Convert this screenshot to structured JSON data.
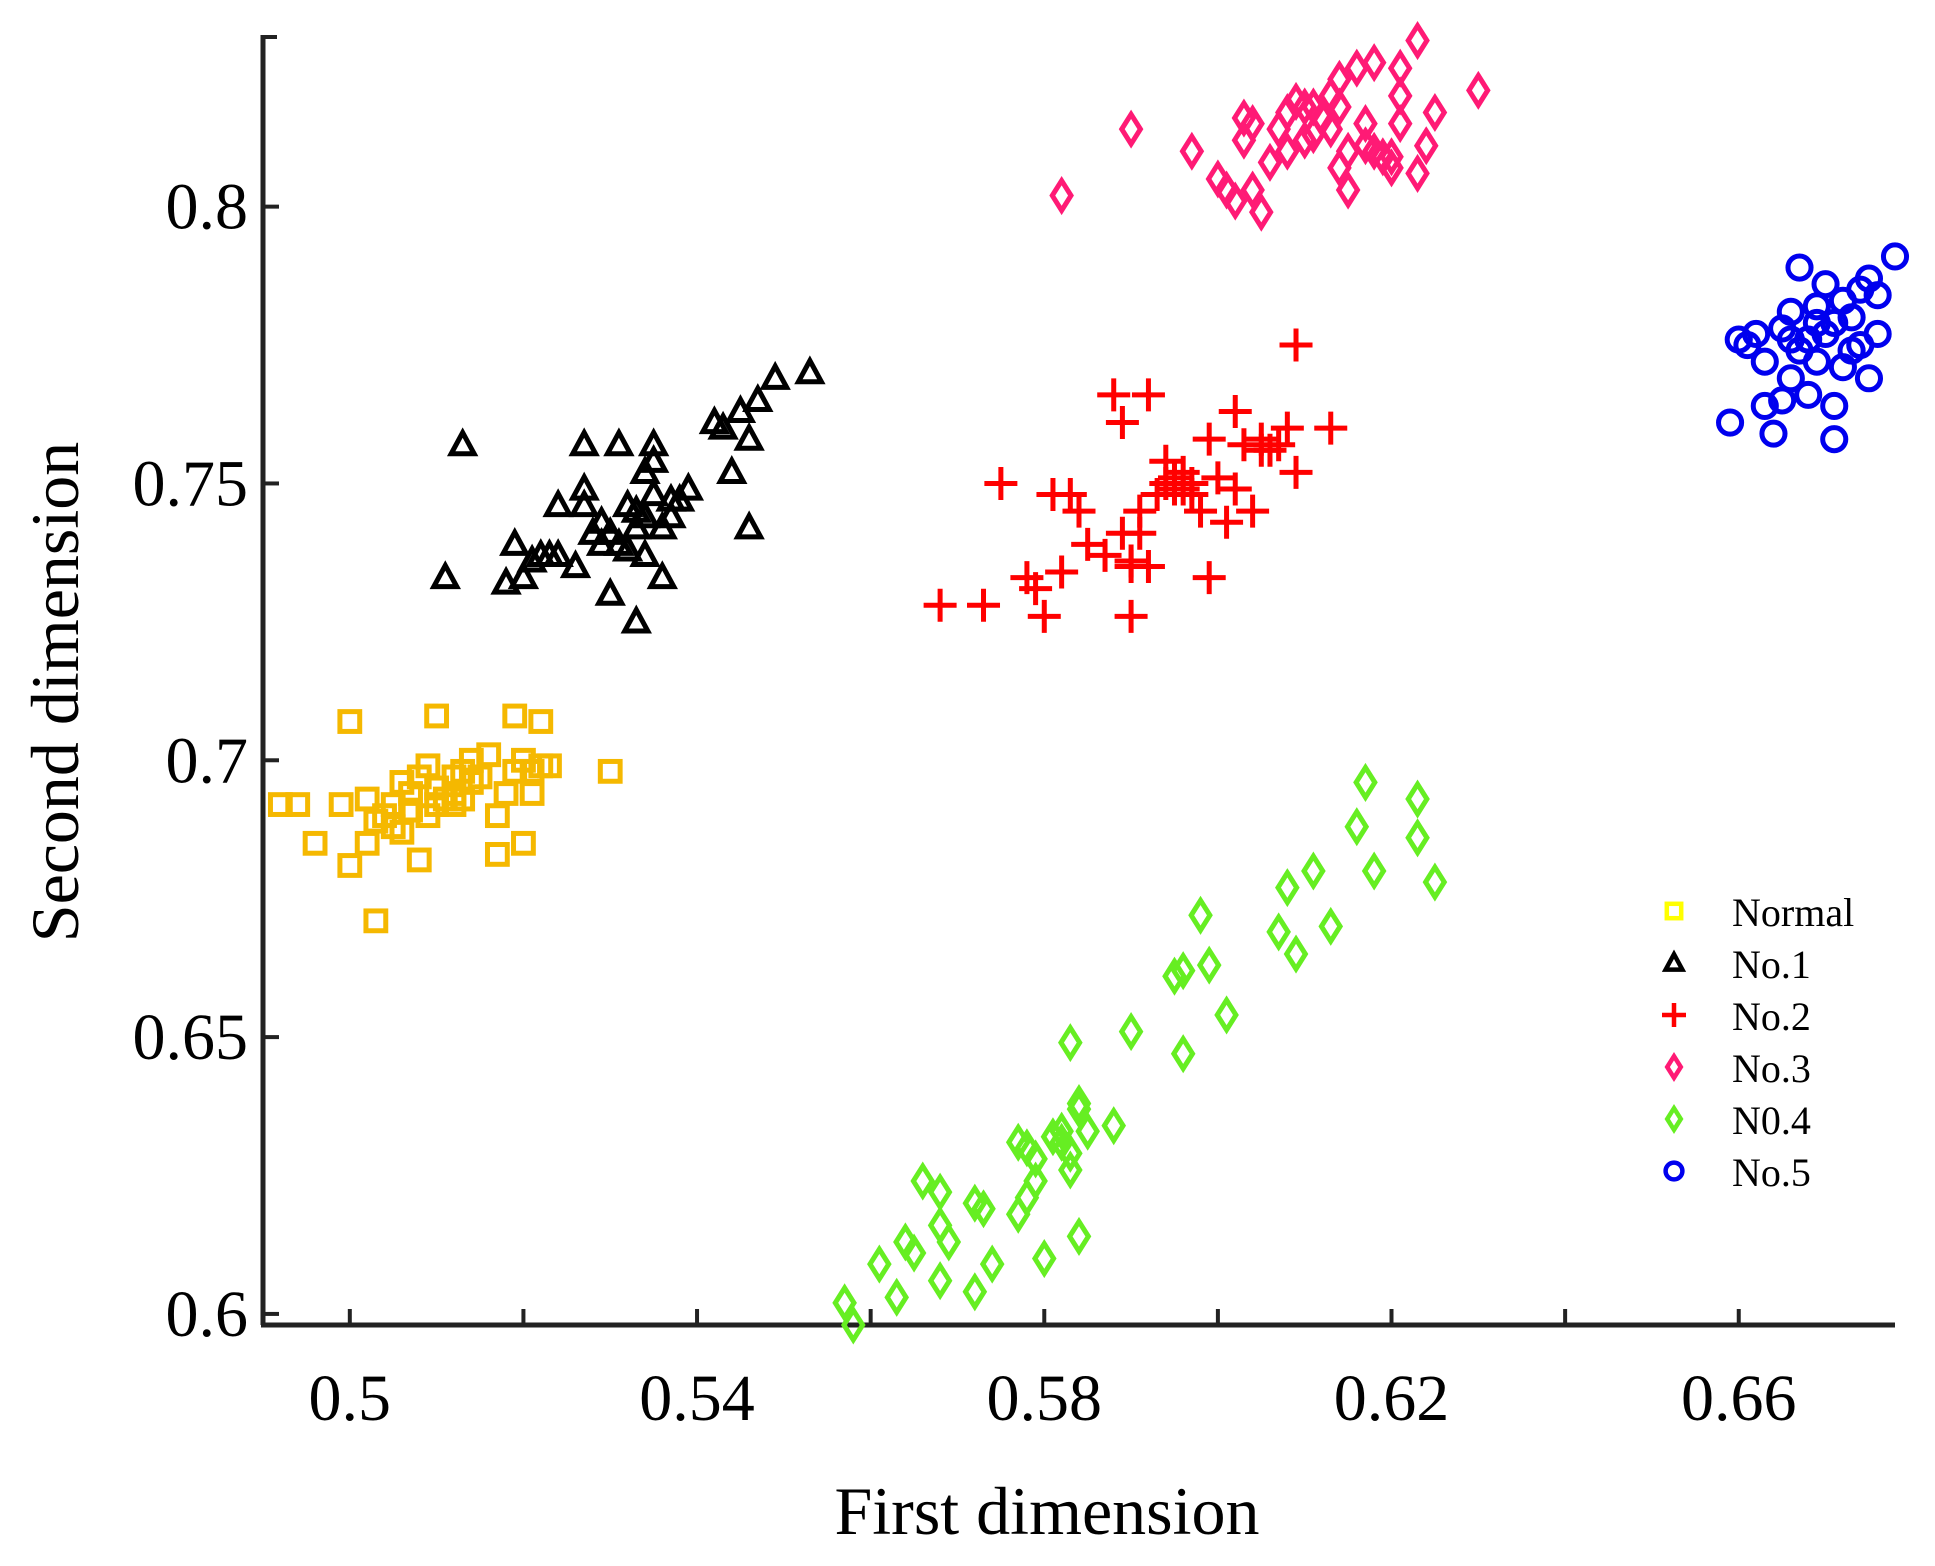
{
  "chart_data": {
    "type": "scatter",
    "title": "",
    "xlabel": "First dimension",
    "ylabel": "Second dimension",
    "xlim": [
      0.49,
      0.678
    ],
    "ylim": [
      0.598,
      0.831
    ],
    "xticks": [
      0.5,
      0.54,
      0.58,
      0.62,
      0.66
    ],
    "xtick_labels": [
      "0.5",
      "0.54",
      "0.58",
      "0.62",
      "0.66"
    ],
    "yticks": [
      0.6,
      0.65,
      0.7,
      0.75,
      0.8
    ],
    "ytick_labels": [
      "0.6",
      "0.65",
      "0.7",
      "0.75",
      "0.8"
    ],
    "grid": false,
    "legend_position": "right",
    "series": [
      {
        "name": "Normal",
        "marker": "square",
        "color": "#f5b800",
        "legend_color": "#ffff00",
        "points": [
          [
            0.492,
            0.692
          ],
          [
            0.494,
            0.692
          ],
          [
            0.496,
            0.685
          ],
          [
            0.499,
            0.692
          ],
          [
            0.5,
            0.681
          ],
          [
            0.5,
            0.707
          ],
          [
            0.502,
            0.693
          ],
          [
            0.502,
            0.685
          ],
          [
            0.503,
            0.689
          ],
          [
            0.503,
            0.671
          ],
          [
            0.504,
            0.69
          ],
          [
            0.505,
            0.688
          ],
          [
            0.505,
            0.692
          ],
          [
            0.506,
            0.687
          ],
          [
            0.506,
            0.696
          ],
          [
            0.507,
            0.691
          ],
          [
            0.507,
            0.694
          ],
          [
            0.508,
            0.697
          ],
          [
            0.508,
            0.682
          ],
          [
            0.509,
            0.699
          ],
          [
            0.509,
            0.69
          ],
          [
            0.51,
            0.695
          ],
          [
            0.51,
            0.692
          ],
          [
            0.51,
            0.708
          ],
          [
            0.511,
            0.693
          ],
          [
            0.512,
            0.692
          ],
          [
            0.512,
            0.697
          ],
          [
            0.512,
            0.694
          ],
          [
            0.513,
            0.698
          ],
          [
            0.513,
            0.693
          ],
          [
            0.514,
            0.7
          ],
          [
            0.514,
            0.696
          ],
          [
            0.515,
            0.697
          ],
          [
            0.516,
            0.701
          ],
          [
            0.517,
            0.69
          ],
          [
            0.517,
            0.683
          ],
          [
            0.518,
            0.694
          ],
          [
            0.519,
            0.698
          ],
          [
            0.519,
            0.708
          ],
          [
            0.52,
            0.7
          ],
          [
            0.52,
            0.685
          ],
          [
            0.521,
            0.698
          ],
          [
            0.521,
            0.694
          ],
          [
            0.522,
            0.707
          ],
          [
            0.522,
            0.699
          ],
          [
            0.523,
            0.699
          ],
          [
            0.53,
            0.698
          ]
        ]
      },
      {
        "name": "No.1",
        "marker": "triangle",
        "color": "#000000",
        "legend_color": "#000000",
        "points": [
          [
            0.511,
            0.733
          ],
          [
            0.513,
            0.757
          ],
          [
            0.518,
            0.732
          ],
          [
            0.519,
            0.739
          ],
          [
            0.52,
            0.733
          ],
          [
            0.521,
            0.736
          ],
          [
            0.522,
            0.737
          ],
          [
            0.523,
            0.737
          ],
          [
            0.524,
            0.746
          ],
          [
            0.526,
            0.735
          ],
          [
            0.527,
            0.757
          ],
          [
            0.527,
            0.749
          ],
          [
            0.527,
            0.746
          ],
          [
            0.528,
            0.741
          ],
          [
            0.529,
            0.743
          ],
          [
            0.529,
            0.739
          ],
          [
            0.53,
            0.73
          ],
          [
            0.53,
            0.741
          ],
          [
            0.531,
            0.757
          ],
          [
            0.531,
            0.739
          ],
          [
            0.532,
            0.746
          ],
          [
            0.532,
            0.738
          ],
          [
            0.533,
            0.745
          ],
          [
            0.533,
            0.742
          ],
          [
            0.533,
            0.725
          ],
          [
            0.534,
            0.744
          ],
          [
            0.534,
            0.737
          ],
          [
            0.534,
            0.752
          ],
          [
            0.535,
            0.757
          ],
          [
            0.535,
            0.754
          ],
          [
            0.535,
            0.748
          ],
          [
            0.536,
            0.742
          ],
          [
            0.536,
            0.733
          ],
          [
            0.537,
            0.747
          ],
          [
            0.537,
            0.744
          ],
          [
            0.538,
            0.747
          ],
          [
            0.539,
            0.749
          ],
          [
            0.542,
            0.761
          ],
          [
            0.543,
            0.76
          ],
          [
            0.544,
            0.752
          ],
          [
            0.545,
            0.763
          ],
          [
            0.546,
            0.758
          ],
          [
            0.546,
            0.742
          ],
          [
            0.547,
            0.765
          ],
          [
            0.549,
            0.769
          ],
          [
            0.553,
            0.77
          ],
          [
            0.524,
            0.737
          ]
        ]
      },
      {
        "name": "No.2",
        "marker": "plus",
        "color": "#ff0000",
        "legend_color": "#ff0000",
        "points": [
          [
            0.568,
            0.728
          ],
          [
            0.573,
            0.728
          ],
          [
            0.575,
            0.75
          ],
          [
            0.578,
            0.733
          ],
          [
            0.579,
            0.731
          ],
          [
            0.58,
            0.726
          ],
          [
            0.581,
            0.748
          ],
          [
            0.582,
            0.734
          ],
          [
            0.583,
            0.748
          ],
          [
            0.584,
            0.745
          ],
          [
            0.585,
            0.739
          ],
          [
            0.587,
            0.737
          ],
          [
            0.588,
            0.766
          ],
          [
            0.589,
            0.761
          ],
          [
            0.589,
            0.741
          ],
          [
            0.59,
            0.736
          ],
          [
            0.59,
            0.735
          ],
          [
            0.59,
            0.726
          ],
          [
            0.591,
            0.741
          ],
          [
            0.591,
            0.745
          ],
          [
            0.592,
            0.766
          ],
          [
            0.592,
            0.735
          ],
          [
            0.593,
            0.748
          ],
          [
            0.594,
            0.75
          ],
          [
            0.594,
            0.754
          ],
          [
            0.595,
            0.749
          ],
          [
            0.595,
            0.751
          ],
          [
            0.596,
            0.752
          ],
          [
            0.596,
            0.749
          ],
          [
            0.597,
            0.75
          ],
          [
            0.597,
            0.748
          ],
          [
            0.598,
            0.745
          ],
          [
            0.599,
            0.733
          ],
          [
            0.599,
            0.758
          ],
          [
            0.6,
            0.751
          ],
          [
            0.601,
            0.743
          ],
          [
            0.602,
            0.763
          ],
          [
            0.602,
            0.749
          ],
          [
            0.603,
            0.757
          ],
          [
            0.604,
            0.745
          ],
          [
            0.605,
            0.758
          ],
          [
            0.605,
            0.756
          ],
          [
            0.606,
            0.756
          ],
          [
            0.607,
            0.757
          ],
          [
            0.608,
            0.76
          ],
          [
            0.609,
            0.752
          ],
          [
            0.609,
            0.775
          ],
          [
            0.613,
            0.76
          ]
        ]
      },
      {
        "name": "No.3",
        "marker": "diamond",
        "color": "#ff1a75",
        "legend_color": "#ff1a75",
        "points": [
          [
            0.582,
            0.802
          ],
          [
            0.59,
            0.814
          ],
          [
            0.597,
            0.81
          ],
          [
            0.6,
            0.805
          ],
          [
            0.601,
            0.803
          ],
          [
            0.602,
            0.801
          ],
          [
            0.603,
            0.816
          ],
          [
            0.603,
            0.812
          ],
          [
            0.604,
            0.803
          ],
          [
            0.604,
            0.815
          ],
          [
            0.605,
            0.799
          ],
          [
            0.606,
            0.808
          ],
          [
            0.607,
            0.814
          ],
          [
            0.608,
            0.81
          ],
          [
            0.608,
            0.817
          ],
          [
            0.609,
            0.819
          ],
          [
            0.61,
            0.818
          ],
          [
            0.61,
            0.812
          ],
          [
            0.611,
            0.813
          ],
          [
            0.612,
            0.816
          ],
          [
            0.613,
            0.82
          ],
          [
            0.613,
            0.814
          ],
          [
            0.614,
            0.823
          ],
          [
            0.614,
            0.807
          ],
          [
            0.615,
            0.81
          ],
          [
            0.615,
            0.803
          ],
          [
            0.616,
            0.825
          ],
          [
            0.617,
            0.815
          ],
          [
            0.617,
            0.811
          ],
          [
            0.618,
            0.826
          ],
          [
            0.618,
            0.81
          ],
          [
            0.619,
            0.809
          ],
          [
            0.62,
            0.807
          ],
          [
            0.621,
            0.82
          ],
          [
            0.621,
            0.825
          ],
          [
            0.621,
            0.815
          ],
          [
            0.623,
            0.83
          ],
          [
            0.623,
            0.806
          ],
          [
            0.624,
            0.811
          ],
          [
            0.625,
            0.817
          ],
          [
            0.62,
            0.809
          ],
          [
            0.63,
            0.821
          ],
          [
            0.614,
            0.818
          ],
          [
            0.611,
            0.818
          ]
        ]
      },
      {
        "name": "N0.4",
        "marker": "diamond",
        "color": "#66ee22",
        "legend_color": "#66ee22",
        "points": [
          [
            0.557,
            0.602
          ],
          [
            0.558,
            0.598
          ],
          [
            0.561,
            0.609
          ],
          [
            0.563,
            0.603
          ],
          [
            0.564,
            0.613
          ],
          [
            0.565,
            0.611
          ],
          [
            0.566,
            0.624
          ],
          [
            0.568,
            0.622
          ],
          [
            0.568,
            0.616
          ],
          [
            0.568,
            0.606
          ],
          [
            0.569,
            0.613
          ],
          [
            0.572,
            0.604
          ],
          [
            0.572,
            0.62
          ],
          [
            0.573,
            0.619
          ],
          [
            0.574,
            0.609
          ],
          [
            0.577,
            0.631
          ],
          [
            0.577,
            0.618
          ],
          [
            0.578,
            0.63
          ],
          [
            0.578,
            0.621
          ],
          [
            0.579,
            0.628
          ],
          [
            0.579,
            0.624
          ],
          [
            0.58,
            0.61
          ],
          [
            0.581,
            0.632
          ],
          [
            0.582,
            0.633
          ],
          [
            0.582,
            0.631
          ],
          [
            0.583,
            0.629
          ],
          [
            0.583,
            0.626
          ],
          [
            0.583,
            0.649
          ],
          [
            0.584,
            0.638
          ],
          [
            0.584,
            0.637
          ],
          [
            0.584,
            0.614
          ],
          [
            0.585,
            0.633
          ],
          [
            0.588,
            0.634
          ],
          [
            0.59,
            0.651
          ],
          [
            0.595,
            0.661
          ],
          [
            0.596,
            0.662
          ],
          [
            0.596,
            0.647
          ],
          [
            0.598,
            0.672
          ],
          [
            0.599,
            0.663
          ],
          [
            0.601,
            0.654
          ],
          [
            0.607,
            0.669
          ],
          [
            0.608,
            0.677
          ],
          [
            0.609,
            0.665
          ],
          [
            0.611,
            0.68
          ],
          [
            0.613,
            0.67
          ],
          [
            0.616,
            0.688
          ],
          [
            0.617,
            0.696
          ],
          [
            0.618,
            0.68
          ],
          [
            0.623,
            0.693
          ],
          [
            0.623,
            0.686
          ],
          [
            0.625,
            0.678
          ]
        ]
      },
      {
        "name": "No.5",
        "marker": "circle",
        "color": "#0000ee",
        "legend_color": "#0000ee",
        "points": [
          [
            0.659,
            0.761
          ],
          [
            0.66,
            0.776
          ],
          [
            0.661,
            0.775
          ],
          [
            0.662,
            0.777
          ],
          [
            0.663,
            0.772
          ],
          [
            0.663,
            0.764
          ],
          [
            0.664,
            0.759
          ],
          [
            0.665,
            0.778
          ],
          [
            0.665,
            0.765
          ],
          [
            0.666,
            0.769
          ],
          [
            0.666,
            0.781
          ],
          [
            0.667,
            0.774
          ],
          [
            0.667,
            0.789
          ],
          [
            0.668,
            0.776
          ],
          [
            0.668,
            0.766
          ],
          [
            0.669,
            0.782
          ],
          [
            0.669,
            0.772
          ],
          [
            0.67,
            0.786
          ],
          [
            0.67,
            0.777
          ],
          [
            0.671,
            0.779
          ],
          [
            0.671,
            0.758
          ],
          [
            0.671,
            0.764
          ],
          [
            0.672,
            0.771
          ],
          [
            0.672,
            0.783
          ],
          [
            0.673,
            0.774
          ],
          [
            0.673,
            0.78
          ],
          [
            0.674,
            0.775
          ],
          [
            0.674,
            0.785
          ],
          [
            0.675,
            0.787
          ],
          [
            0.675,
            0.769
          ],
          [
            0.676,
            0.777
          ],
          [
            0.676,
            0.784
          ],
          [
            0.678,
            0.791
          ],
          [
            0.666,
            0.776
          ],
          [
            0.669,
            0.779
          ]
        ]
      }
    ]
  }
}
